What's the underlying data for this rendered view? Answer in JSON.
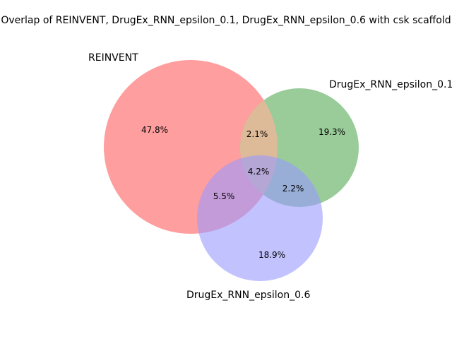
{
  "title": "Overlap of REINVENT, DrugEx_RNN_epsilon_0.1, DrugEx_RNN_epsilon_0.6 with csk scaffold",
  "sets": [
    {
      "name": "REINVENT",
      "color": "#ff9999"
    },
    {
      "name": "DrugEx_RNN_epsilon_0.1",
      "color": "#99cc99"
    },
    {
      "name": "DrugEx_RNN_epsilon_0.6",
      "color": "#9999ff"
    }
  ],
  "regions": {
    "only_a": "47.8%",
    "only_b": "19.3%",
    "only_c": "18.9%",
    "ab": "2.1%",
    "ac": "5.5%",
    "bc": "2.2%",
    "abc": "4.2%"
  }
}
